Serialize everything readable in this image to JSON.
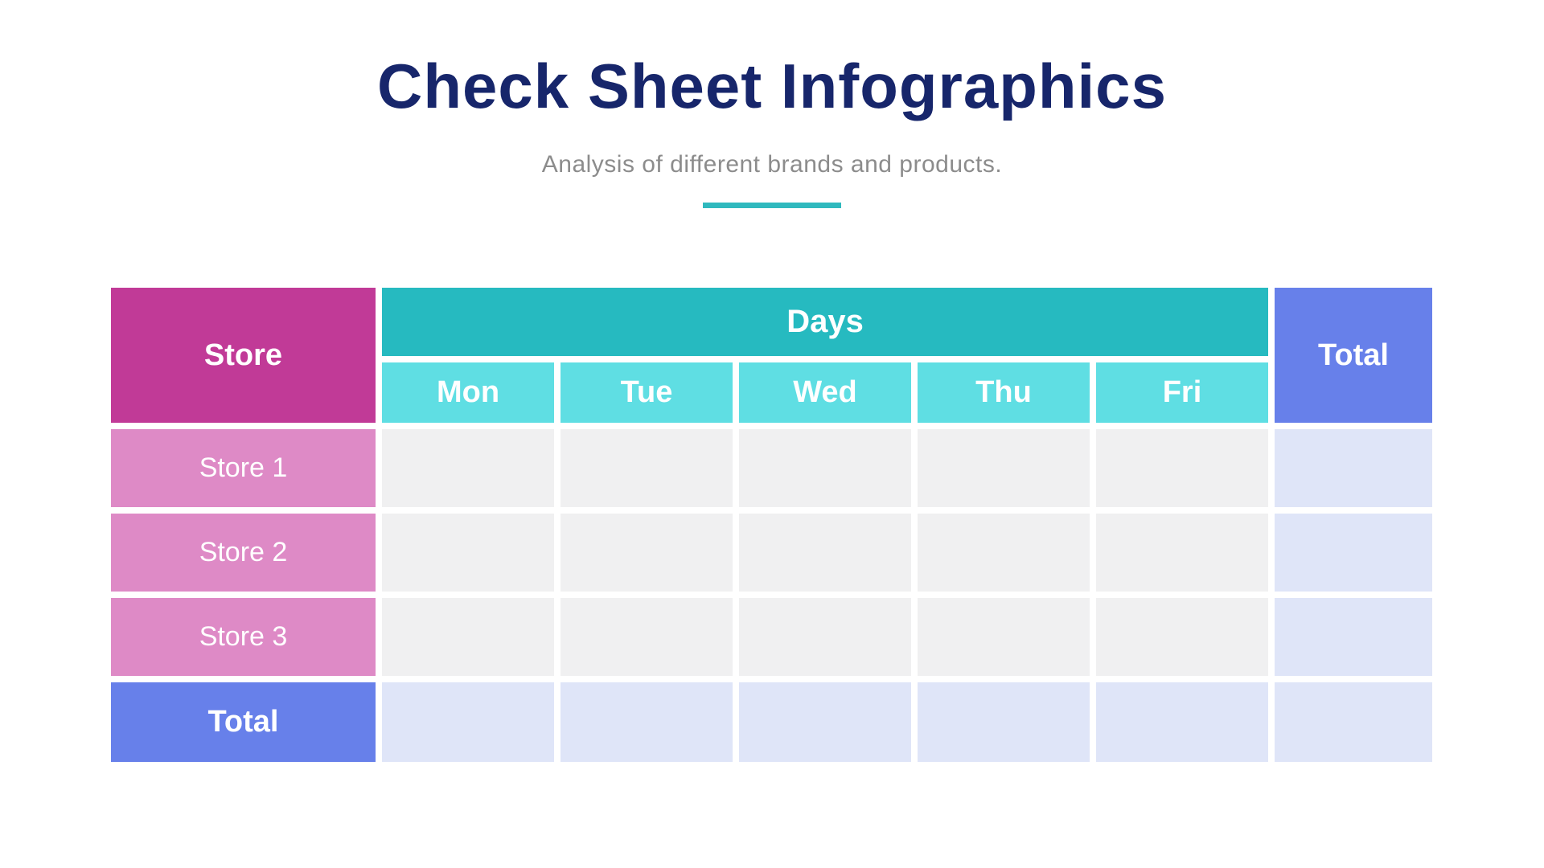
{
  "page": {
    "title": "Check Sheet Infographics",
    "subtitle": "Analysis of different brands and products."
  },
  "colors": {
    "title_navy": "#17266B",
    "subtitle_gray": "#8C8C8C",
    "accent_teal": "#2FB9BE",
    "store_header": "#C13A97",
    "store_row": "#DE8AC6",
    "days_header": "#26BAC0",
    "day_cell": "#5FDEE3",
    "total_header": "#6780EA",
    "empty_cell_gray": "#F0F0F1",
    "total_cell_lavender": "#DFE5F8",
    "page_bg": "#FFFFFF"
  },
  "table": {
    "corner_header": "Store",
    "days_group_header": "Days",
    "total_column_header": "Total",
    "day_columns": [
      "Mon",
      "Tue",
      "Wed",
      "Thu",
      "Fri"
    ],
    "rows": [
      {
        "label": "Store 1",
        "values": [
          "",
          "",
          "",
          "",
          ""
        ],
        "total": ""
      },
      {
        "label": "Store 2",
        "values": [
          "",
          "",
          "",
          "",
          ""
        ],
        "total": ""
      },
      {
        "label": "Store 3",
        "values": [
          "",
          "",
          "",
          "",
          ""
        ],
        "total": ""
      }
    ],
    "footer": {
      "label": "Total",
      "values": [
        "",
        "",
        "",
        "",
        ""
      ],
      "total": ""
    }
  },
  "chart_data": {
    "type": "table",
    "title": "Check Sheet Infographics",
    "subtitle": "Analysis of different brands and products.",
    "column_group": {
      "label": "Days",
      "columns": [
        "Mon",
        "Tue",
        "Wed",
        "Thu",
        "Fri"
      ]
    },
    "columns": [
      "Store",
      "Mon",
      "Tue",
      "Wed",
      "Thu",
      "Fri",
      "Total"
    ],
    "rows": [
      {
        "store": "Store 1",
        "mon": "",
        "tue": "",
        "wed": "",
        "thu": "",
        "fri": "",
        "total": ""
      },
      {
        "store": "Store 2",
        "mon": "",
        "tue": "",
        "wed": "",
        "thu": "",
        "fri": "",
        "total": ""
      },
      {
        "store": "Store 3",
        "mon": "",
        "tue": "",
        "wed": "",
        "thu": "",
        "fri": "",
        "total": ""
      },
      {
        "store": "Total",
        "mon": "",
        "tue": "",
        "wed": "",
        "thu": "",
        "fri": "",
        "total": ""
      }
    ],
    "notes": "Blank check-sheet template: all data cells are empty"
  }
}
